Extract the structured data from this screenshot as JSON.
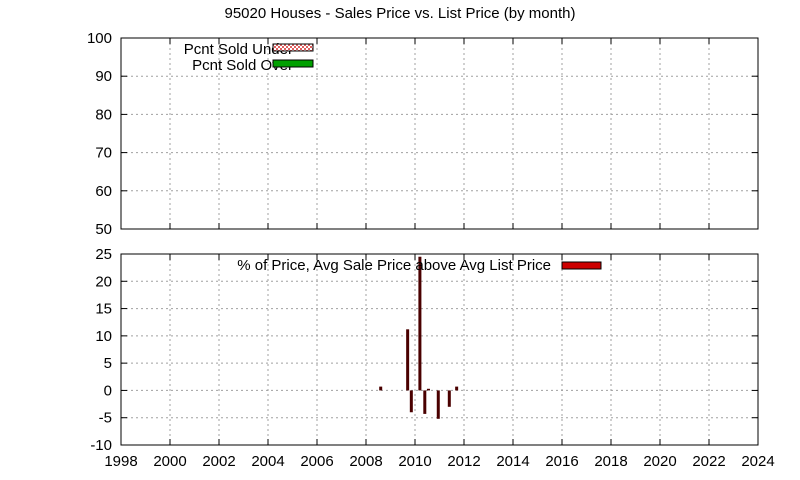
{
  "chart_data": [
    {
      "type": "bar",
      "title": "95020 Houses - Sales Price vs. List Price (by month)",
      "ylim": [
        50,
        100
      ],
      "yticks": [
        50,
        60,
        70,
        80,
        90,
        100
      ],
      "xlim": [
        1998,
        2024
      ],
      "grid": true,
      "legend_position": "top-left",
      "series": [
        {
          "name": "Pcnt Sold Under",
          "color": "#ffc0c0",
          "pattern": "checker",
          "values": []
        },
        {
          "name": "Pcnt Sold Over",
          "color": "#00a000",
          "values": []
        }
      ]
    },
    {
      "type": "bar",
      "ylim": [
        -10,
        25
      ],
      "yticks": [
        -10,
        -5,
        0,
        5,
        10,
        15,
        20,
        25
      ],
      "xlim": [
        1998,
        2024
      ],
      "xticks": [
        1998,
        2000,
        2002,
        2004,
        2006,
        2008,
        2010,
        2012,
        2014,
        2016,
        2018,
        2020,
        2022,
        2024
      ],
      "grid": true,
      "legend_position": "top-center",
      "series": [
        {
          "name": "% of Price, Avg Sale Price above Avg List Price",
          "color": "#4a0000",
          "legend_color": "#cc0000",
          "x": [
            2008.6,
            2009.7,
            2009.85,
            2010.2,
            2010.4,
            2010.55,
            2010.95,
            2011.4,
            2011.7
          ],
          "values": [
            0.7,
            11.2,
            -4.0,
            24.5,
            -4.3,
            0.3,
            -5.2,
            -3.0,
            0.7
          ]
        }
      ]
    }
  ]
}
